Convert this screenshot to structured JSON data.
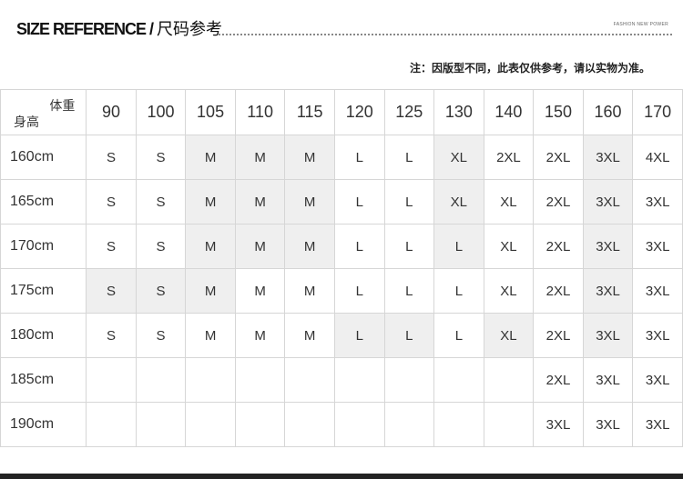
{
  "header": {
    "title_en": "SIZE REFERENCE",
    "title_sep": " / ",
    "title_zh": "尺码参考",
    "brand": "FASHION NEW POWER",
    "note": "注：因版型不同，此表仅供参考，请以实物为准。"
  },
  "table": {
    "corner_weight": "体重",
    "corner_height": "身高",
    "weights": [
      "90",
      "100",
      "105",
      "110",
      "115",
      "120",
      "125",
      "130",
      "140",
      "150",
      "160",
      "170"
    ],
    "rows": [
      {
        "height": "160cm",
        "sizes": [
          "S",
          "S",
          "M",
          "M",
          "M",
          "L",
          "L",
          "XL",
          "2XL",
          "2XL",
          "3XL",
          "4XL"
        ],
        "shaded": [
          2,
          3,
          4,
          7,
          10
        ]
      },
      {
        "height": "165cm",
        "sizes": [
          "S",
          "S",
          "M",
          "M",
          "M",
          "L",
          "L",
          "XL",
          "XL",
          "2XL",
          "3XL",
          "3XL"
        ],
        "shaded": [
          2,
          3,
          4,
          7,
          10
        ]
      },
      {
        "height": "170cm",
        "sizes": [
          "S",
          "S",
          "M",
          "M",
          "M",
          "L",
          "L",
          "L",
          "XL",
          "2XL",
          "3XL",
          "3XL"
        ],
        "shaded": [
          2,
          3,
          4,
          7,
          10
        ]
      },
      {
        "height": "175cm",
        "sizes": [
          "S",
          "S",
          "M",
          "M",
          "M",
          "L",
          "L",
          "L",
          "XL",
          "2XL",
          "3XL",
          "3XL"
        ],
        "shaded": [
          0,
          1,
          2,
          10
        ]
      },
      {
        "height": "180cm",
        "sizes": [
          "S",
          "S",
          "M",
          "M",
          "M",
          "L",
          "L",
          "L",
          "XL",
          "2XL",
          "3XL",
          "3XL"
        ],
        "shaded": [
          5,
          6,
          8,
          10
        ]
      },
      {
        "height": "185cm",
        "sizes": [
          "",
          "",
          "",
          "",
          "",
          "",
          "",
          "",
          "",
          "2XL",
          "3XL",
          "3XL"
        ],
        "shaded": []
      },
      {
        "height": "190cm",
        "sizes": [
          "",
          "",
          "",
          "",
          "",
          "",
          "",
          "",
          "",
          "3XL",
          "3XL",
          "3XL"
        ],
        "shaded": []
      }
    ],
    "shade_color": "#efefef"
  }
}
